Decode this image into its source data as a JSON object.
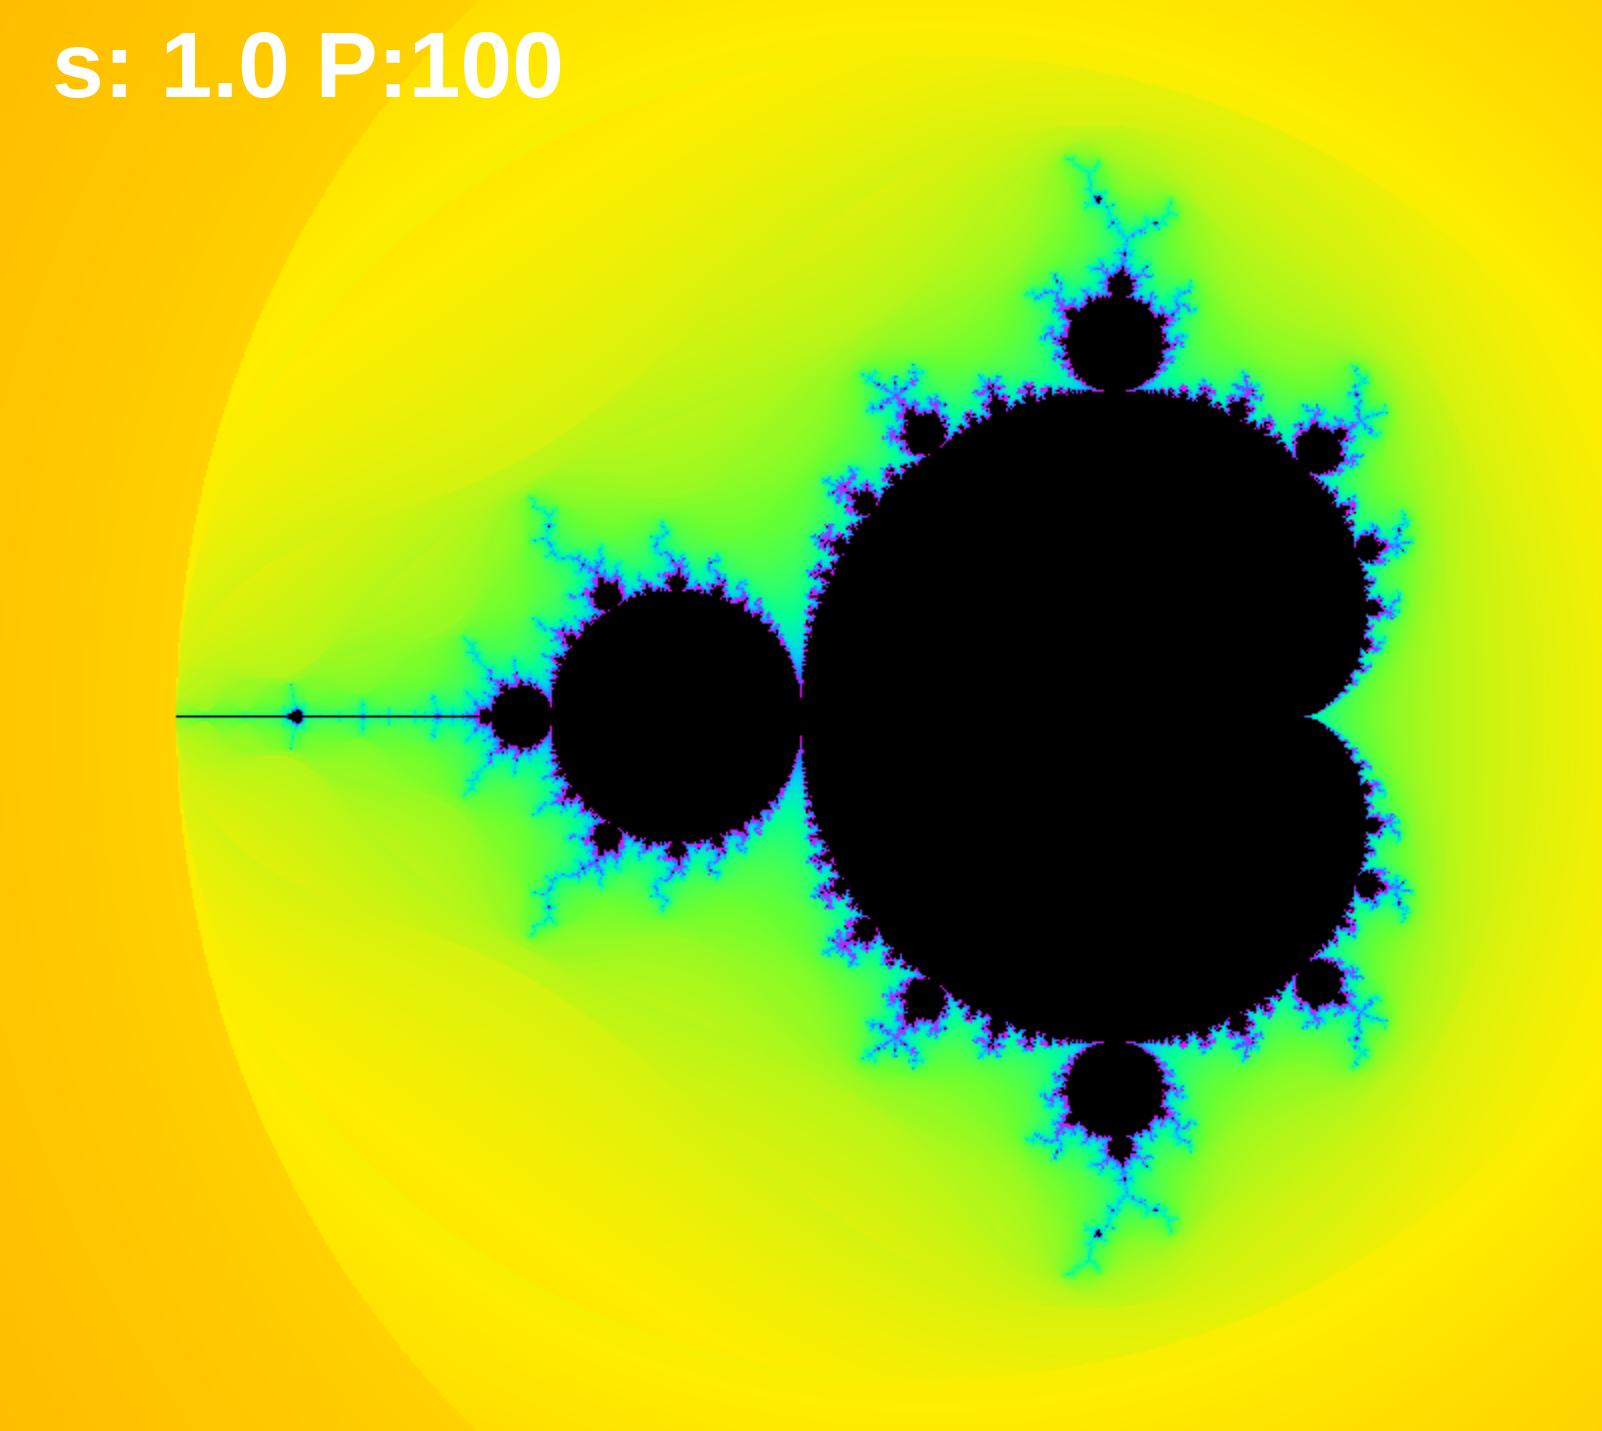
{
  "hud": {
    "status_text": "s: 1.0 P:100",
    "scale": 1.0,
    "precision": 100
  },
  "view": {
    "center_re": -0.75,
    "center_im": 0.0,
    "span_re": 3.2,
    "max_iterations": 100
  },
  "colors": {
    "background": "#ff0000",
    "set_interior": "#000000",
    "hud_text": "#ffffff",
    "gradient": [
      "#ff0000",
      "#ff7a00",
      "#ffee00",
      "#66ff33",
      "#00ff99",
      "#00ccff",
      "#3366ff",
      "#aa33ff",
      "#ff00ff"
    ]
  }
}
